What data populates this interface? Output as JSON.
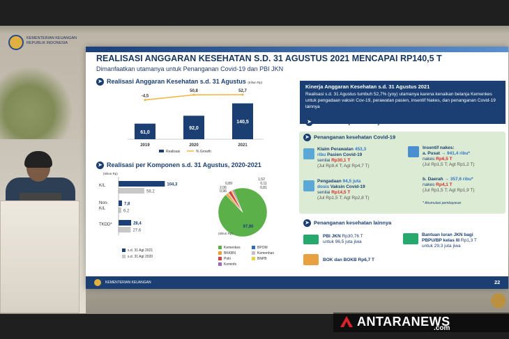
{
  "header": {
    "org_line1": "KEMENTERIAN KEUANGAN",
    "org_line2": "REPUBLIK INDONESIA"
  },
  "slide": {
    "title": "REALISASI ANGGARAN KESEHATAN S.D. 31 AGUSTUS 2021 MENCAPAI RP140,5 T",
    "subtitle": "Dimanfaatkan utamanya untuk Penanganan Covid-19 dan PBI JKN",
    "page_number": "22",
    "footer_org": "KEMENTERIAN KEUANGAN"
  },
  "chart1": {
    "section_title": "Realisasi Anggaran Kesehatan s.d. 31 Agustus",
    "unit": "(triliun Rp)",
    "legend_bar": "Realisasi",
    "legend_line": "% Growth"
  },
  "chart2": {
    "section_title": "Realisasi per Komponen s.d. 31 Agustus, 2020-2021",
    "unit": "(triliun Rp)",
    "legend_2021": "s.d. 31 Agt 2021",
    "legend_2020": "s.d. 31 Agt 2020",
    "pie_unit": "(triliun Rp)",
    "pie_legend": [
      "Kemenkes",
      "BPOM",
      "BKKBN",
      "Kemenhan",
      "Polri",
      "BNPB",
      "Kominfo"
    ],
    "pie_legend_colors": [
      "#5bb04a",
      "#2f6fb8",
      "#f0a030",
      "#c0c0c0",
      "#d44040",
      "#e8d040",
      "#9a6ab8"
    ]
  },
  "chart_data": [
    {
      "type": "bar",
      "title": "Realisasi Anggaran Kesehatan s.d. 31 Agustus",
      "categories": [
        "2019",
        "2020",
        "2021"
      ],
      "series": [
        {
          "name": "Realisasi",
          "values": [
            61.0,
            92.0,
            140.5
          ],
          "labels": [
            "61,0",
            "92,0",
            "140,5"
          ]
        },
        {
          "name": "% Growth",
          "values": [
            -4.5,
            50.8,
            52.7
          ],
          "labels": [
            "-4,5",
            "50,8",
            "52,7"
          ]
        }
      ],
      "colors": {
        "bar": "#1b3f72",
        "line": "#f2b43a"
      }
    },
    {
      "type": "bar",
      "title": "Realisasi per Komponen s.d. 31 Agustus, 2020-2021",
      "categories": [
        "K/L",
        "Non-K/L",
        "TKDD*"
      ],
      "category_lines": [
        [
          "K/L"
        ],
        [
          "Non-",
          "K/L"
        ],
        [
          "TKDD*"
        ]
      ],
      "series": [
        {
          "name": "s.d. 31 Agt 2021",
          "values": [
            104.3,
            7.8,
            28.4
          ],
          "labels": [
            "104,3",
            "7,8",
            "28,4"
          ]
        },
        {
          "name": "s.d. 31 Agt 2020",
          "values": [
            58.2,
            6.2,
            27.6
          ],
          "labels": [
            "58,2",
            "6,2",
            "27,6"
          ]
        }
      ],
      "colors": {
        "2021": "#1b3f72",
        "2020": "#c8c8c8"
      }
    },
    {
      "type": "pie",
      "title": "",
      "categories": [
        "Kemenkes",
        "BPOM",
        "BKKBN",
        "Kemenhan",
        "Polri",
        "BNPB",
        "Kominfo"
      ],
      "values": [
        97.9,
        0.11,
        1.52,
        0.81,
        2.06,
        0.96,
        0.89
      ],
      "labels": [
        "97,90",
        "0,11",
        "1,52",
        "0,81",
        "2,06",
        "0,96",
        "0,89"
      ]
    }
  ],
  "kinerja": {
    "heading": "Kinerja Anggaran Kesehatan s.d. 31 Agustus 2021",
    "body": "Realisasi s.d. 31 Agustus tumbuh 52,7% (yoy) utamanya karena kenaikan belanja Kemenkes untuk pengadaan vaksin Cov-19, perawatan pasien, insentif Nakes, dan penanganan Covid-19 lainnya"
  },
  "manfaat": {
    "heading": "Manfaat kepada masyarakat:",
    "covid_heading": "Penanganan kesehatan Covid-19",
    "klaim_line1_a": "Klaim Perawatan ",
    "klaim_line1_b": "453,3",
    "klaim_line2_a": "ribu",
    "klaim_line2_b": " Pasien Covid-19",
    "klaim_line3_a": "senilai ",
    "klaim_line3_b": "Rp30,1 T",
    "klaim_line4": "(Jul Rp9,4 T; Agt Rp4,7 T)",
    "vaksin_line1_a": "Pengadaan ",
    "vaksin_line1_b": "94,5 juta",
    "vaksin_line2_a": "dosis",
    "vaksin_line2_b": " Vaksin Covid-19",
    "vaksin_line3_a": "senilai ",
    "vaksin_line3_b": "Rp14,5 T",
    "vaksin_line4": "(Jul Rp1,5 T; Agt Rp2,8 T)",
    "insentif_heading": "Insentif nakes:",
    "pusat_a": "a. Pusat → ",
    "pusat_b": "941,4 ribu*",
    "pusat_line2_a": "nakes ",
    "pusat_line2_b": "Rp6,5 T",
    "pusat_line3": "(Jul Rp1,5 T; Agt Rp1,2 T)",
    "daerah_a": "b. Daerah → ",
    "daerah_b": "357,6 ribu*",
    "daerah_line2_a": "nakes ",
    "daerah_line2_b": "Rp4,1 T",
    "daerah_line3": "(Jul Rp1,5 T; Agt Rp1,9 T)",
    "note": "* Akumulasi pembayaran",
    "lainnya_heading": "Penanganan kesehatan lainnya",
    "pbi_line1_a": "PBI JKN",
    "pbi_line1_b": " Rp30,76 T",
    "pbi_line2": "untuk 96,5 juta jiwa",
    "bok": "BOK dan BOKB Rp6,7 T",
    "bantuan_line1": "Bantuan Iuran JKN bagi",
    "bantuan_line2_a": "PBPU/BP kelas III",
    "bantuan_line2_b": " Rp1,3 T",
    "bantuan_line3": "untuk 29,3 juta jiwa"
  },
  "watermark": {
    "brand": "ANTARANEWS",
    "suffix": ".com"
  }
}
